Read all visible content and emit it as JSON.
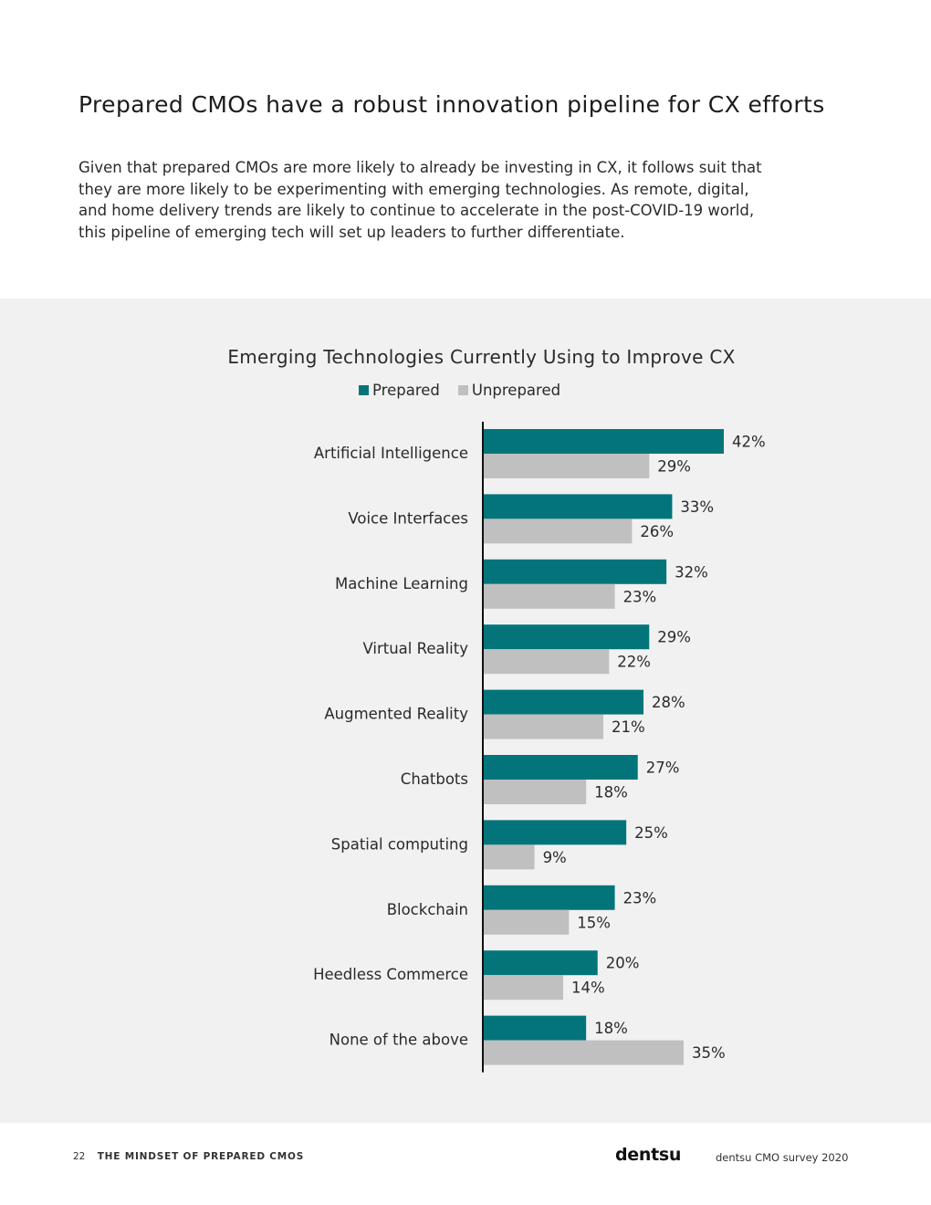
{
  "header": {
    "title": "Prepared CMOs have a robust innovation pipeline for CX efforts",
    "intro_lines": [
      "Given that prepared CMOs are more likely to already be investing in CX, it follows suit that",
      "they are more likely to be experimenting with emerging technologies. As remote, digital,",
      "and home delivery trends are likely to continue to accelerate in the post-COVID-19 world,",
      "this pipeline of emerging tech will set up leaders to further differentiate."
    ]
  },
  "colors": {
    "prepared": "#03757a",
    "unprepared": "#c0c0c0",
    "panel_background": "#f1f1f1"
  },
  "chart_data": {
    "type": "bar",
    "orientation": "horizontal",
    "title": "Emerging Technologies Currently Using to Improve CX",
    "categories": [
      "Artificial Intelligence",
      "Voice Interfaces",
      "Machine Learning",
      "Virtual Reality",
      "Augmented Reality",
      "Chatbots",
      "Spatial computing",
      "Blockchain",
      "Heedless Commerce",
      "None of the above"
    ],
    "series": [
      {
        "name": "Prepared",
        "values": [
          42,
          33,
          32,
          29,
          28,
          27,
          25,
          23,
          20,
          18
        ]
      },
      {
        "name": "Unprepared",
        "values": [
          29,
          26,
          23,
          22,
          21,
          18,
          9,
          15,
          14,
          35
        ]
      }
    ],
    "value_suffix": "%",
    "legend_position": "top",
    "grid": false
  },
  "footer": {
    "page_number": "22",
    "document_title": "THE MINDSET OF PREPARED CMOS",
    "logo": "dentsu",
    "survey_label": "dentsu CMO survey 2020"
  }
}
